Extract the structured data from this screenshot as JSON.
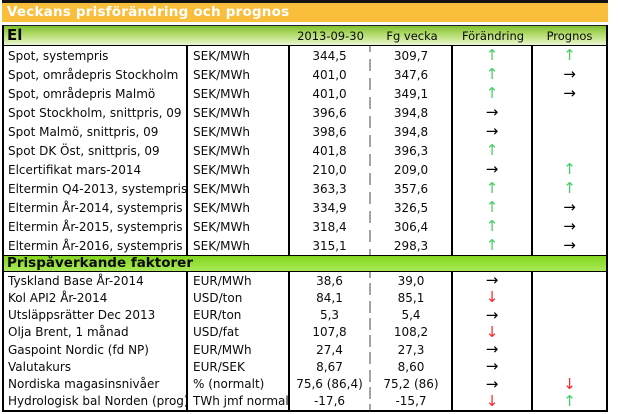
{
  "title": "Veckans prisförändring och prognos",
  "columns": {
    "current": "2013-09-30",
    "previous": "Fg vecka",
    "change": "Förändring",
    "forecast": "Prognos"
  },
  "sections": [
    {
      "header": "El",
      "rows": [
        {
          "label": "Spot, systempris",
          "unit": "SEK/MWh",
          "current": "344,5",
          "previous": "309,7",
          "change": "up",
          "forecast": "up"
        },
        {
          "label": "Spot, områdepris Stockholm",
          "unit": "SEK/MWh",
          "current": "401,0",
          "previous": "347,6",
          "change": "up",
          "forecast": "right"
        },
        {
          "label": "Spot, områdepris Malmö",
          "unit": "SEK/MWh",
          "current": "401,0",
          "previous": "349,1",
          "change": "up",
          "forecast": "right"
        },
        {
          "label": "Spot Stockholm, snittpris, 09",
          "unit": "SEK/MWh",
          "current": "396,6",
          "previous": "394,8",
          "change": "right",
          "forecast": ""
        },
        {
          "label": "Spot Malmö, snittpris, 09",
          "unit": "SEK/MWh",
          "current": "398,6",
          "previous": "394,8",
          "change": "right",
          "forecast": ""
        },
        {
          "label": "Spot DK Öst, snittpris, 09",
          "unit": "SEK/MWh",
          "current": "401,8",
          "previous": "396,3",
          "change": "up",
          "forecast": ""
        },
        {
          "label": "Elcertifikat mars-2014",
          "unit": "SEK/MWh",
          "current": "210,0",
          "previous": "209,0",
          "change": "right",
          "forecast": "up"
        },
        {
          "label": "Eltermin Q4-2013, systempris",
          "unit": "SEK/MWh",
          "current": "363,3",
          "previous": "357,6",
          "change": "up",
          "forecast": "up"
        },
        {
          "label": "Eltermin År-2014, systempris",
          "unit": "SEK/MWh",
          "current": "334,9",
          "previous": "326,5",
          "change": "up",
          "forecast": "right"
        },
        {
          "label": "Eltermin År-2015, systempris",
          "unit": "SEK/MWh",
          "current": "318,4",
          "previous": "306,4",
          "change": "up",
          "forecast": "right"
        },
        {
          "label": "Eltermin År-2016, systempris",
          "unit": "SEK/MWh",
          "current": "315,1",
          "previous": "298,3",
          "change": "up",
          "forecast": "right"
        }
      ]
    },
    {
      "header": "Prispåverkande faktorer",
      "rows": [
        {
          "label": "Tyskland Base År-2014",
          "unit": "EUR/MWh",
          "current": "38,6",
          "previous": "39,0",
          "change": "right",
          "forecast": ""
        },
        {
          "label": "Kol API2 År-2014",
          "unit": "USD/ton",
          "current": "84,1",
          "previous": "85,1",
          "change": "down",
          "forecast": ""
        },
        {
          "label": "Utsläppsrätter Dec 2013",
          "unit": "EUR/ton",
          "current": "5,3",
          "previous": "5,4",
          "change": "right",
          "forecast": ""
        },
        {
          "label": "Olja Brent, 1 månad",
          "unit": "USD/fat",
          "current": "107,8",
          "previous": "108,2",
          "change": "down",
          "forecast": ""
        },
        {
          "label": "Gaspoint Nordic (fd NP)",
          "unit": "EUR/MWh",
          "current": "27,4",
          "previous": "27,3",
          "change": "right",
          "forecast": ""
        },
        {
          "label": "Valutakurs",
          "unit": "EUR/SEK",
          "current": "8,67",
          "previous": "8,60",
          "change": "right",
          "forecast": ""
        },
        {
          "label": "Nordiska magasinsnivåer",
          "unit": "%  (normalt)",
          "current": "75,6 (86,4)",
          "previous": "75,2 (86)",
          "change": "right",
          "forecast": "down"
        },
        {
          "label": "Hydrologisk bal Norden (prog)",
          "unit": "TWh jmf normalt",
          "current": "-17,6",
          "previous": "-15,7",
          "change": "down",
          "forecast": "up"
        }
      ]
    }
  ],
  "icons": {
    "up": {
      "glyph": "↑",
      "color": "#44cf62",
      "name": "trend-up-icon"
    },
    "right": {
      "glyph": "→",
      "color": "#000000",
      "name": "trend-right-icon"
    },
    "down": {
      "glyph": "↓",
      "color": "#ff2525",
      "name": "trend-down-icon"
    }
  },
  "colors": {
    "title_bg": "#f9be3b",
    "title_text": "#ffffff",
    "section_green": "#83d51e",
    "border": "#000000",
    "up_arrow": "#44cf62",
    "down_arrow": "#ff2525",
    "flat_arrow": "#000000"
  }
}
